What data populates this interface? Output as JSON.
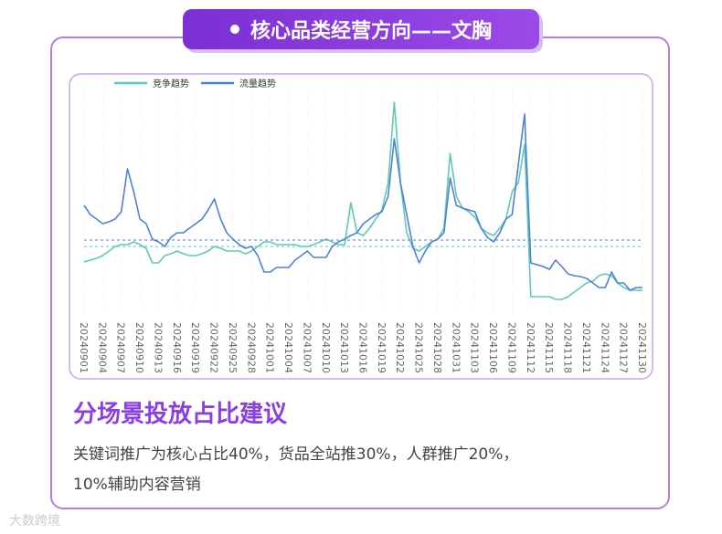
{
  "header": {
    "title": "核心品类经营方向——文胸"
  },
  "chart_data": {
    "type": "line",
    "categories": [
      "20240901",
      null,
      null,
      "20240904",
      null,
      null,
      "20240907",
      null,
      null,
      "20240910",
      null,
      null,
      "20240913",
      null,
      null,
      "20240916",
      null,
      null,
      "20240919",
      null,
      null,
      "20240922",
      null,
      null,
      "20240925",
      null,
      null,
      "20240928",
      null,
      null,
      "20241001",
      null,
      null,
      "20241004",
      null,
      null,
      "20241007",
      null,
      null,
      "20241010",
      null,
      null,
      "20241013",
      null,
      null,
      "20241016",
      null,
      null,
      "20241019",
      null,
      null,
      "20241022",
      null,
      null,
      "20241025",
      null,
      null,
      "20241028",
      null,
      null,
      "20241031",
      null,
      null,
      "20241103",
      null,
      null,
      "20241106",
      null,
      null,
      "20241109",
      null,
      null,
      "20241112",
      null,
      null,
      "20241115",
      null,
      null,
      "20241118",
      null,
      null,
      "20241121",
      null,
      null,
      "20241124",
      null,
      null,
      "20241127",
      null,
      null,
      "20241130"
    ],
    "series": [
      {
        "name": "竞争趋势",
        "color": "#5fcab3",
        "reference": 75,
        "values": [
          58,
          60,
          62,
          65,
          70,
          75,
          77,
          77,
          80,
          77,
          73,
          57,
          57,
          65,
          67,
          70,
          67,
          65,
          65,
          67,
          70,
          75,
          73,
          70,
          70,
          70,
          67,
          70,
          75,
          80,
          80,
          77,
          77,
          77,
          77,
          75,
          75,
          77,
          80,
          83,
          80,
          77,
          77,
          123,
          90,
          87,
          95,
          105,
          115,
          145,
          233,
          145,
          90,
          73,
          70,
          75,
          80,
          83,
          95,
          177,
          130,
          117,
          113,
          107,
          95,
          90,
          87,
          95,
          105,
          135,
          145,
          187,
          20,
          20,
          20,
          20,
          17,
          17,
          20,
          25,
          30,
          35,
          37,
          43,
          45,
          43,
          35,
          30,
          27,
          27,
          27
        ]
      },
      {
        "name": "流量趋势",
        "color": "#4f82d6",
        "reference": 82,
        "values": [
          120,
          110,
          105,
          100,
          102,
          105,
          113,
          160,
          135,
          105,
          100,
          83,
          80,
          75,
          85,
          90,
          90,
          95,
          100,
          105,
          115,
          127,
          105,
          90,
          83,
          77,
          73,
          75,
          65,
          47,
          47,
          52,
          52,
          52,
          60,
          65,
          70,
          63,
          63,
          63,
          75,
          80,
          83,
          87,
          90,
          100,
          105,
          110,
          113,
          130,
          193,
          145,
          110,
          75,
          57,
          70,
          80,
          83,
          90,
          150,
          120,
          117,
          115,
          113,
          95,
          85,
          80,
          90,
          105,
          110,
          165,
          220,
          57,
          55,
          53,
          50,
          60,
          53,
          45,
          43,
          42,
          40,
          35,
          30,
          30,
          47,
          35,
          35,
          27,
          30,
          30
        ]
      }
    ],
    "ylim": [
      0,
      250
    ],
    "legend": "top-left"
  },
  "section": {
    "heading": "分场景投放占比建议",
    "lines": [
      "关键词推广为核心占比40%，货品全站推30%，人群推广20%，",
      "10%辅助内容营销"
    ]
  },
  "watermark": "大数跨境"
}
